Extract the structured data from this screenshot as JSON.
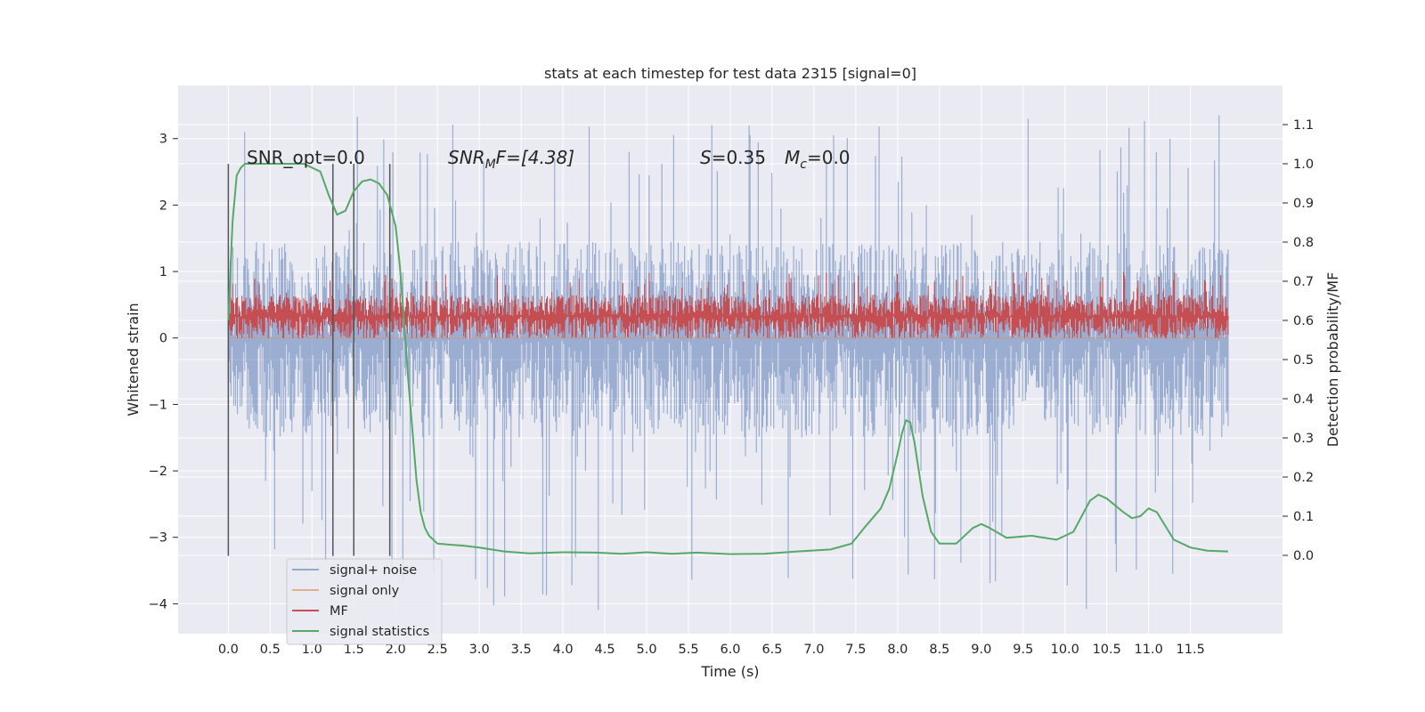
{
  "chart_data": {
    "type": "line",
    "title": "stats at each timestep for test data 2315 [signal=0]",
    "xlabel": "Time (s)",
    "ylabel_left": "Whitened strain",
    "ylabel_right": "Detection probability/MF",
    "xlim": [
      -0.6,
      12.6
    ],
    "ylim_left": [
      -4.45,
      3.8
    ],
    "ylim_right": [
      -0.2,
      1.2
    ],
    "x_ticks": [
      0.0,
      0.5,
      1.0,
      1.5,
      2.0,
      2.5,
      3.0,
      3.5,
      4.0,
      4.5,
      5.0,
      5.5,
      6.0,
      6.5,
      7.0,
      7.5,
      8.0,
      8.5,
      9.0,
      9.5,
      10.0,
      10.5,
      11.0,
      11.5
    ],
    "x_tick_labels": [
      "0.0",
      "0.5",
      "1.0",
      "1.5",
      "2.0",
      "2.5",
      "3.0",
      "3.5",
      "4.0",
      "4.5",
      "5.0",
      "5.5",
      "6.0",
      "6.5",
      "7.0",
      "7.5",
      "8.0",
      "8.5",
      "9.0",
      "9.5",
      "10.0",
      "10.5",
      "11.0",
      "11.5"
    ],
    "y_left_ticks": [
      3,
      2,
      1,
      0,
      -1,
      -2,
      -3,
      -4
    ],
    "y_left_tick_labels": [
      "3",
      "2",
      "1",
      "0",
      "−1",
      "−2",
      "−3",
      "−4"
    ],
    "y_right_ticks": [
      1.1,
      1.0,
      0.9,
      0.8,
      0.7,
      0.6,
      0.5,
      0.4,
      0.3,
      0.2,
      0.1,
      0.0
    ],
    "y_right_tick_labels": [
      "1.1",
      "1.0",
      "0.9",
      "0.8",
      "0.7",
      "0.6",
      "0.5",
      "0.4",
      "0.3",
      "0.2",
      "0.1",
      "0.0"
    ],
    "grid": true,
    "background": "#eaeaf2",
    "annotations": {
      "snr_opt": "SNR_opt=0.0",
      "snr_mf_main": "SNR",
      "snr_mf_sub": "M",
      "snr_mf_rest": "F=[4.38]",
      "s_main": "S",
      "s_rest": "=0.35",
      "mc_main": "M",
      "mc_sub": "c",
      "mc_rest": "=0.0"
    },
    "vertical_markers": [
      0.0,
      1.25,
      1.5,
      1.93
    ],
    "series": [
      {
        "name": "signal+ noise",
        "color": "#4c72b0",
        "axis": "left",
        "kind": "noise",
        "x_range": [
          0.0,
          11.95
        ],
        "band_min": [
          -1.5,
          -1.5
        ],
        "band_max": [
          1.45,
          1.45
        ],
        "y_min": -4.1,
        "y_max": 3.35
      },
      {
        "name": "signal only",
        "color": "#dd8452",
        "axis": "left",
        "kind": "flat",
        "x": [
          0.0,
          11.95
        ],
        "y": [
          0.0,
          0.0
        ]
      },
      {
        "name": "MF",
        "color": "#c44e52",
        "axis": "left",
        "kind": "noise",
        "x_range": [
          0.0,
          11.95
        ],
        "band_min": [
          0.0,
          0.0
        ],
        "band_max": [
          0.65,
          0.65
        ],
        "y_min": 0.0,
        "y_max": 1.0
      },
      {
        "name": "signal statistics",
        "color": "#55a868",
        "axis": "right",
        "kind": "line",
        "x": [
          0.0,
          0.05,
          0.1,
          0.15,
          0.2,
          0.3,
          0.5,
          0.7,
          0.9,
          1.1,
          1.2,
          1.3,
          1.4,
          1.5,
          1.6,
          1.7,
          1.8,
          1.9,
          2.0,
          2.05,
          2.1,
          2.15,
          2.2,
          2.25,
          2.3,
          2.35,
          2.4,
          2.45,
          2.5,
          2.6,
          2.8,
          3.0,
          3.3,
          3.6,
          4.0,
          4.4,
          4.7,
          5.0,
          5.3,
          5.6,
          6.0,
          6.4,
          6.8,
          7.2,
          7.45,
          7.6,
          7.8,
          7.9,
          8.0,
          8.05,
          8.1,
          8.15,
          8.2,
          8.3,
          8.4,
          8.5,
          8.7,
          8.9,
          9.0,
          9.1,
          9.3,
          9.6,
          9.9,
          10.1,
          10.2,
          10.3,
          10.4,
          10.5,
          10.7,
          10.8,
          10.9,
          11.0,
          11.1,
          11.2,
          11.3,
          11.5,
          11.7,
          11.95
        ],
        "y": [
          0.6,
          0.85,
          0.97,
          0.99,
          1.0,
          1.0,
          1.0,
          1.0,
          1.0,
          0.98,
          0.92,
          0.87,
          0.88,
          0.93,
          0.955,
          0.96,
          0.95,
          0.92,
          0.84,
          0.74,
          0.6,
          0.45,
          0.32,
          0.19,
          0.11,
          0.07,
          0.05,
          0.04,
          0.03,
          0.028,
          0.025,
          0.02,
          0.01,
          0.005,
          0.008,
          0.007,
          0.004,
          0.008,
          0.004,
          0.007,
          0.003,
          0.004,
          0.01,
          0.015,
          0.03,
          0.07,
          0.12,
          0.17,
          0.26,
          0.31,
          0.345,
          0.34,
          0.29,
          0.15,
          0.06,
          0.03,
          0.03,
          0.07,
          0.08,
          0.07,
          0.045,
          0.05,
          0.04,
          0.06,
          0.1,
          0.14,
          0.155,
          0.145,
          0.11,
          0.095,
          0.1,
          0.12,
          0.11,
          0.075,
          0.04,
          0.02,
          0.012,
          0.01
        ]
      }
    ],
    "legend": {
      "position": "lower-left",
      "entries": [
        "signal+ noise",
        "signal only",
        "MF",
        "signal statistics"
      ]
    }
  }
}
